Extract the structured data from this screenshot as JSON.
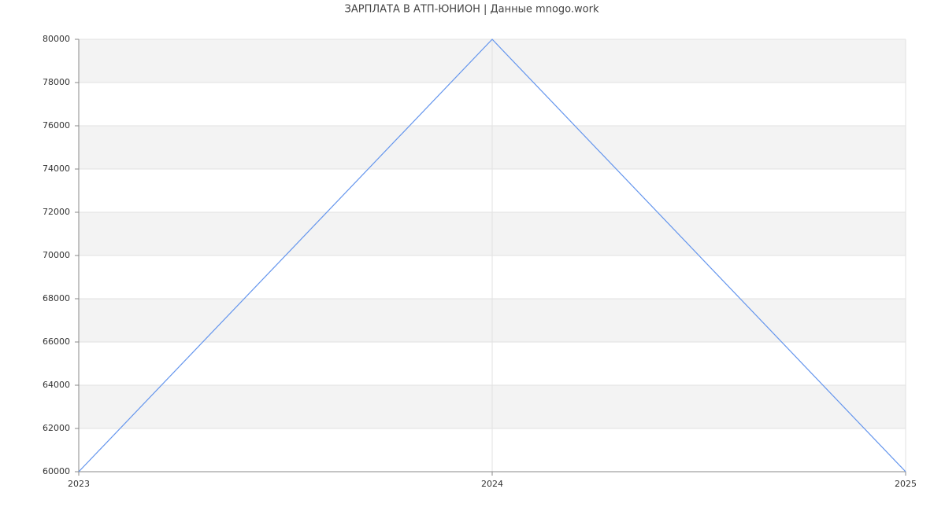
{
  "chart_data": {
    "type": "line",
    "title": "ЗАРПЛАТА В АТП-ЮНИОН | Данные mnogo.work",
    "x": [
      2023,
      2024,
      2025
    ],
    "values": [
      60000,
      80000,
      60000
    ],
    "color": "#6495ed",
    "xlim": [
      2023,
      2025
    ],
    "xticks": [
      2023,
      2024,
      2025
    ],
    "ylim": [
      60000,
      80000
    ],
    "yticks": [
      60000,
      62000,
      64000,
      66000,
      68000,
      70000,
      72000,
      74000,
      76000,
      78000,
      80000
    ],
    "grid": true
  }
}
